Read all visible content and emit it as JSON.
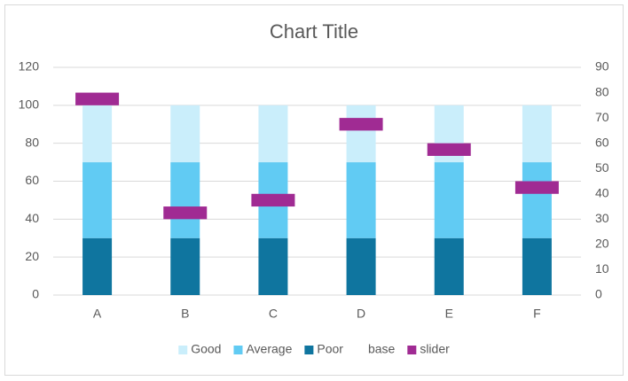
{
  "chart_data": {
    "type": "bar",
    "stacked": true,
    "title": "Chart Title",
    "categories": [
      "A",
      "B",
      "C",
      "D",
      "E",
      "F"
    ],
    "series": [
      {
        "name": "Good",
        "color": "#caeefb",
        "values": [
          30,
          30,
          30,
          30,
          30,
          30
        ]
      },
      {
        "name": "Average",
        "color": "#61cbf3",
        "values": [
          40,
          40,
          40,
          40,
          40,
          40
        ]
      },
      {
        "name": "Poor",
        "color": "#0f759f",
        "values": [
          30,
          30,
          30,
          30,
          30,
          30
        ]
      },
      {
        "name": "base",
        "axis": "y2",
        "values": [
          75,
          30,
          35,
          65,
          55,
          40
        ]
      },
      {
        "name": "slider",
        "axis": "y2",
        "color": "#a02b93",
        "values": [
          5,
          5,
          5,
          5,
          5,
          5
        ]
      }
    ],
    "ylim": [
      0,
      120
    ],
    "yticks": [
      0,
      20,
      40,
      60,
      80,
      100,
      120
    ],
    "y2lim": [
      0,
      90
    ],
    "y2ticks": [
      0,
      10,
      20,
      30,
      40,
      50,
      60,
      70,
      80,
      90
    ],
    "grid": true,
    "legend": "bottom"
  }
}
